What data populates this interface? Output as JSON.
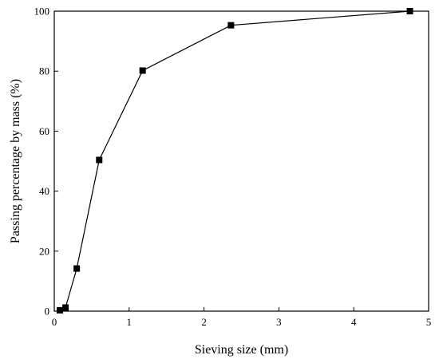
{
  "chart_data": {
    "type": "line",
    "xlabel": "Sieving size (mm)",
    "ylabel": "Passing percentage by mass (%)",
    "xlim": [
      0,
      5
    ],
    "ylim": [
      0,
      100
    ],
    "xticks": [
      0,
      1,
      2,
      3,
      4,
      5
    ],
    "yticks": [
      0,
      20,
      40,
      60,
      80,
      100
    ],
    "grid": false,
    "marker": "square",
    "series": [
      {
        "x": [
          0.075,
          0.15,
          0.3,
          0.6,
          1.18,
          2.36,
          4.75
        ],
        "y": [
          0.3,
          1.2,
          14.2,
          50.4,
          80.2,
          95.3,
          100
        ]
      }
    ]
  }
}
